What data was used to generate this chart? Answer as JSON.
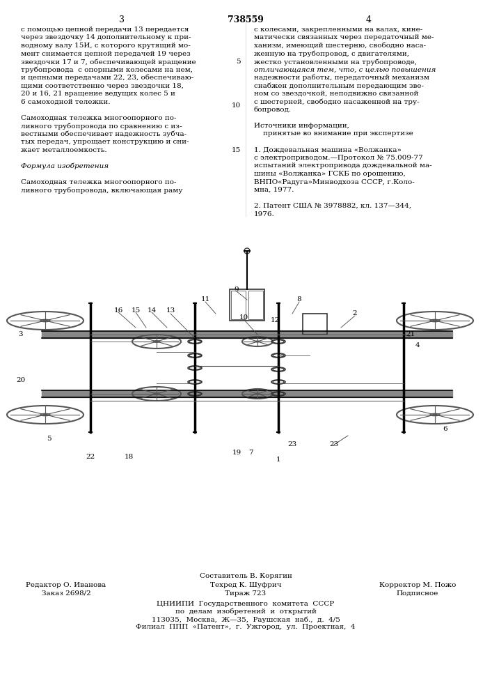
{
  "patent_number": "738559",
  "page_numbers": [
    "3",
    "4"
  ],
  "col1_text": [
    "с помощью цепной передачи 13 передается",
    "через звездочку 14 дополнительному к при-",
    "водному валу 15И, с которого крутящий мо-",
    "мент снимается цепной передачей 19 через",
    "звездочки 17 и 7, обеспечивающей вращение",
    "трубопровода  с опорными колесами на нем,",
    "и цепными передачами 22, 23, обеспечиваю-",
    "щими соответственно через звездочки 18,",
    "20 и 16, 21 вращение ведущих колес 5 и",
    "6 самоходной тележки.",
    "",
    "Самоходная тележка многоопорного по-",
    "ливного трубопровода по сравнению с из-",
    "вестными обеспечивает надежность зубча-",
    "тых передач, упрощает конструкцию и сни-",
    "жает металлоемкость.",
    "",
    "Формула изобретения",
    "",
    "Самоходная тележка многоопорного по-",
    "ливного трубопровода, включающая раму"
  ],
  "col2_text": [
    "с колесами, закрепленными на валах, кине-",
    "матически связанных через передаточный ме-",
    "ханизм, имеющий шестерню, свободно наса-",
    "женную на трубопровод, с двигателями,",
    "жестко установленными на трубопроводе,",
    "отличающаяся тем, что, с целью повышения",
    "надежности работы, передаточный механизм",
    "снабжен дополнительным передающим зве-",
    "ном со звездочкой, неподвижно связанной",
    "с шестерней, свободно насаженной на тру-",
    "бопровод.",
    "",
    "Источники информации,",
    "    принятые во внимание при экспертизе",
    "",
    "1. Дождевальная машина «Волжанка»",
    "с электроприводом.—Протокол № 75.009-77",
    "испытаний электропривода дождевальной ма-",
    "шины «Волжанка» ГСКБ по орошению,",
    "ВНПО«Радуга»Минводхоза СССР, г.Коло-",
    "мна, 1977.",
    "",
    "2. Патент США № 3978882, кл. 137—344,",
    "1976."
  ],
  "col2_line5_italic": "отличающаяся тем, что, с целью повышения",
  "section_refs": [
    "5",
    "10",
    "15"
  ],
  "bottom_texts": {
    "composer": "Составитель В. Корягин",
    "editor": "Редактор О. Иванова",
    "tech": "Техред К. Шуфрич",
    "corrector": "Корректор М. Пожо",
    "order": "Заказ 2698/2",
    "edition": "Тираж 723",
    "subscription": "Подписное",
    "org1": "ЦНИИПИ  Государственного  комитета  СССР",
    "org2": "по  делам  изобретений  и  открытий",
    "org3": "113035,  Москва,  Ж—35,  Раушская  наб.,  д.  4/5",
    "org4": "Филиал  ППП  «Патент»,  г.  Ужгород,  ул.  Проектная,  4"
  },
  "bg_color": "#ffffff",
  "text_color": "#000000",
  "line_color": "#333333"
}
